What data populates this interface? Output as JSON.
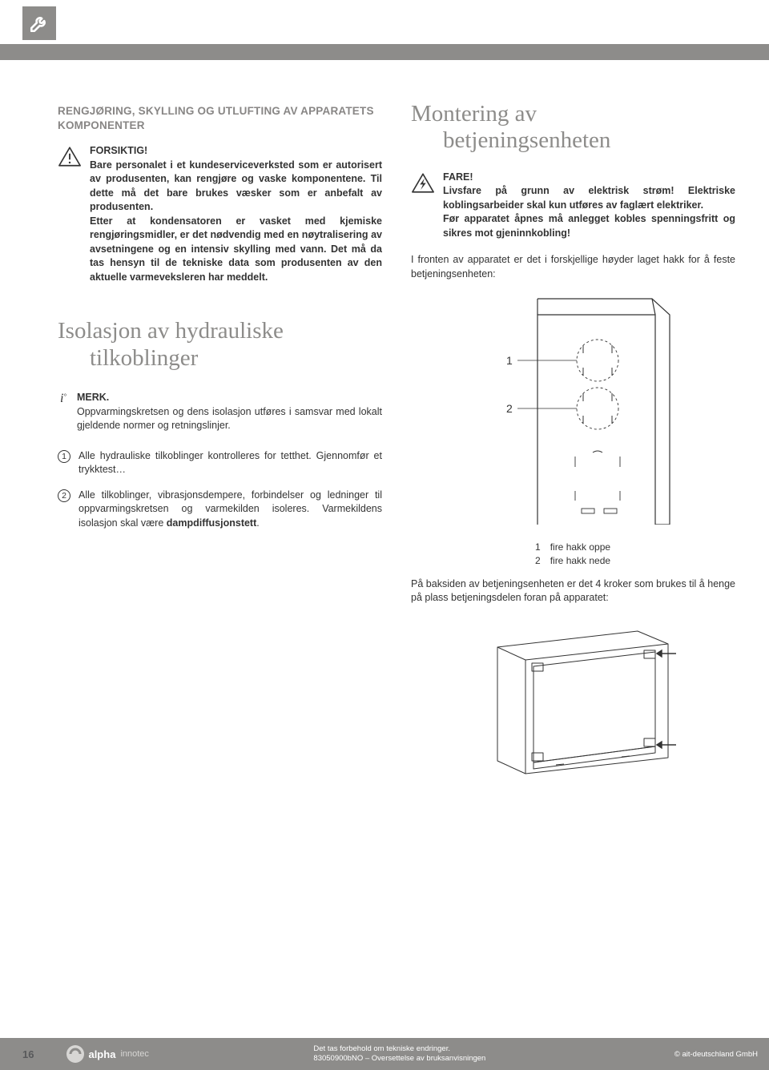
{
  "header": {
    "tool_icon": "wrench-icon"
  },
  "left": {
    "section_title": "RENGJØRING, SKYLLING OG UTLUFTING AV APPARATETS KOMPONENTER",
    "forsiktig": {
      "title": "FORSIKTIG!",
      "body": "Bare personalet i et kundeserviceverksted som er autorisert av produsenten, kan rengjøre og vaske komponentene. Til dette må det bare brukes væsker som er anbefalt av produsenten.\nEtter at kondensatoren er vasket med kjemiske rengjøringsmidler, er det nødvendig med en nøytralisering av avsetningene og en intensiv skylling med vann. Det må da tas hensyn til de tekniske data som produsenten av den aktuelle varmeveksleren har meddelt."
    },
    "heading2_line1": "Isolasjon av hydrauliske",
    "heading2_line2": "tilkoblinger",
    "merk": {
      "title": "MERK.",
      "body": "Oppvarmingskretsen og dens isolasjon utføres i samsvar med lokalt gjeldende normer og retningslinjer."
    },
    "steps": [
      "Alle hydrauliske tilkoblinger kontrolleres for tetthet. Gjennomfør et trykktest…",
      "Alle tilkoblinger, vibrasjonsdempere, forbindelser og ledninger til oppvarmingskretsen og varmekilden isoleres. Varmekildens isolasjon skal være dampdiffusjonstett."
    ]
  },
  "right": {
    "heading_line1": "Montering av",
    "heading_line2": "betjeningsenheten",
    "fare": {
      "title": "FARE!",
      "body": "Livsfare på grunn av elektrisk strøm! Elektriske koblingsarbeider skal kun utføres av faglært elektriker.\nFør apparatet åpnes må anlegget kobles spenningsfritt og sikres mot gjeninnkobling!"
    },
    "para1": "I fronten av apparatet er det i forskjellige høyder laget hakk for å feste betjeningsenheten:",
    "diagram_labels": {
      "l1": "1",
      "l2": "2"
    },
    "legend": [
      {
        "n": "1",
        "txt": "fire hakk oppe"
      },
      {
        "n": "2",
        "txt": "fire hakk nede"
      }
    ],
    "para2": "På baksiden av betjeningsenheten er det 4 kroker som brukes til å henge på plass betjeningsdelen foran på apparatet:"
  },
  "footer": {
    "page": "16",
    "brand": "alpha",
    "brand_sub": "innotec",
    "line1": "Det tas forbehold om tekniske endringer.",
    "line2": "83050900bNO – Oversettelse av bruksanvisningen",
    "right": "© ait-deutschland GmbH"
  },
  "colors": {
    "gray": "#8d8c8a",
    "text": "#333333",
    "light": "#d7d6d4"
  }
}
